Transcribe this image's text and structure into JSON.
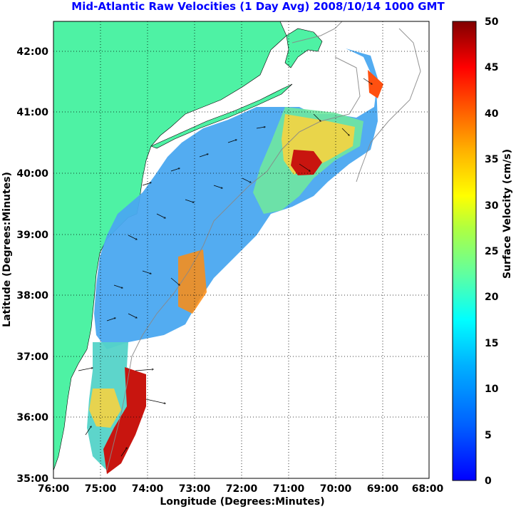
{
  "title": "Mid-Atlantic Raw Velocities (1 Day Avg) 2008/10/14 1000 GMT",
  "xlabel": "Longitude (Degrees:Minutes)",
  "ylabel": "Latitude (Degrees:Minutes)",
  "colorbar_label": "Surface Velocity (cm/s)",
  "x_ticks": [
    "76:00",
    "75:00",
    "74:00",
    "73:00",
    "72:00",
    "71:00",
    "70:00",
    "69:00",
    "68:00"
  ],
  "y_ticks": [
    "42:00",
    "41:00",
    "40:00",
    "39:00",
    "38:00",
    "37:00",
    "36:00",
    "35:00"
  ],
  "colorbar_ticks": [
    "50",
    "45",
    "40",
    "35",
    "30",
    "25",
    "20",
    "15",
    "10",
    "5",
    "0"
  ],
  "map": {
    "lon_range": [
      -76,
      -68
    ],
    "lat_range": [
      35,
      42.5
    ],
    "colorbar_range": [
      0,
      50
    ],
    "land_color": "#4ef2a4",
    "ocean_color": "#ffffff",
    "grid": "dotted"
  }
}
